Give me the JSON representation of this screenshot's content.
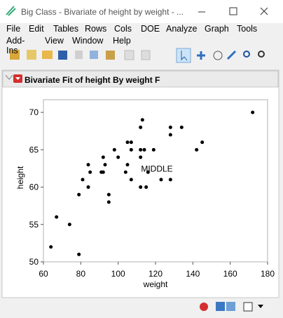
{
  "window": {
    "title": "Big Class - Bivariate of height by weight - ..."
  },
  "menu": [
    [
      "File",
      "Edit",
      "Tables",
      "Rows",
      "Cols",
      "DOE",
      "Analyze",
      "Graph",
      "Tools"
    ],
    [
      "Add-Ins",
      "View",
      "Window",
      "Help"
    ]
  ],
  "report": {
    "title": "Bivariate Fit of height By weight F"
  },
  "chart_data": {
    "type": "scatter",
    "xlabel": "weight",
    "ylabel": "height",
    "color": "#000000",
    "x": [
      64,
      67,
      74,
      79,
      79,
      81,
      84,
      84,
      85,
      91,
      92,
      92,
      93,
      95,
      95,
      98,
      100,
      104,
      105,
      105,
      107,
      107,
      107,
      112,
      112,
      112,
      112,
      113,
      114,
      115,
      116,
      119,
      123,
      128,
      128,
      128,
      134,
      142,
      145,
      172
    ],
    "values": [
      52,
      56,
      55,
      59,
      51,
      61,
      60,
      63,
      62,
      62,
      64,
      62,
      63,
      59,
      58,
      65,
      64,
      62,
      63,
      66,
      66,
      65,
      61,
      65,
      68,
      64,
      60,
      69,
      65,
      60,
      62,
      65,
      61,
      68,
      67,
      61,
      68,
      65,
      66,
      70
    ],
    "point_labels": [
      null,
      null,
      null,
      null,
      null,
      null,
      null,
      null,
      null,
      null,
      null,
      null,
      null,
      null,
      null,
      null,
      null,
      null,
      null,
      null,
      null,
      null,
      null,
      null,
      null,
      null,
      null,
      null,
      null,
      null,
      "MIDDLE",
      null,
      null,
      null,
      null,
      null,
      null,
      null,
      null,
      null
    ],
    "xlim": [
      60,
      180
    ],
    "xticks": [
      60,
      80,
      100,
      120,
      140,
      160,
      180
    ],
    "ylim": [
      50,
      71.7
    ],
    "yticks": [
      50,
      55,
      60,
      65,
      70
    ]
  }
}
